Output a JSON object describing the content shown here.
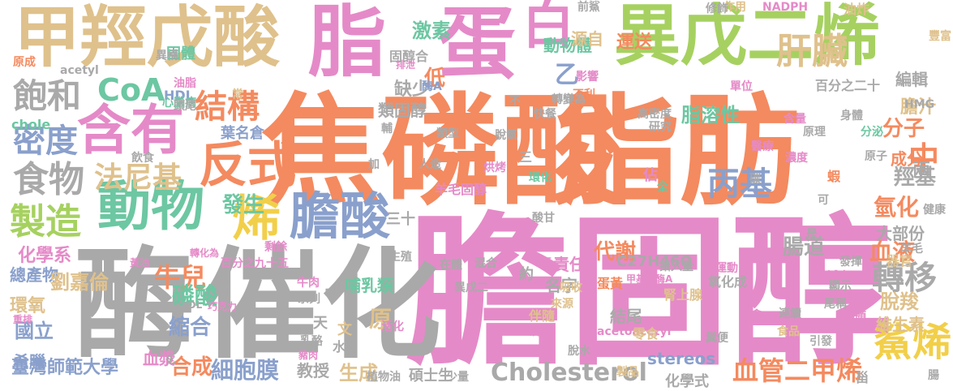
{
  "palette": {
    "orange": "#f48a5f",
    "pink": "#e58ac8",
    "green": "#a6d160",
    "tan": "#dfc18c",
    "gray": "#a9a9a9",
    "blue": "#8aa0cc",
    "teal": "#6cc7a2",
    "yellow": "#f2cf4a"
  },
  "words": [
    "膽固醇",
    "焦磷酸",
    "脂肪",
    "酶",
    "催化",
    "脂",
    "蛋",
    "白",
    "異戊二烯",
    "甲羥戊酸",
    "含有",
    "動物",
    "膽酸",
    "反式",
    "CoA",
    "飽和",
    "結構",
    "肝臟",
    "密度",
    "食物",
    "製造",
    "烯",
    "法尼基",
    "丙基",
    "中",
    "鯊烯",
    "轉移",
    "血管二甲烯",
    "Cholesterol",
    "臺灣師範大學",
    "國立",
    "化學系",
    "總產物",
    "環氧",
    "劉嘉倫",
    "牛兒",
    "磷酸",
    "縮合",
    "細胞膜",
    "發生",
    "分子",
    "氫化",
    "羥基",
    "腸道",
    "血液",
    "脫羧",
    "維生素",
    "大部份",
    "兩",
    "成分",
    "膽汁",
    "編輯",
    "脂溶性",
    "代謝",
    "結尾",
    "化學式",
    "碩士生",
    "生成",
    "教授",
    "哺乳類",
    "原",
    "合成",
    "血漿",
    "希臘",
    "葉名倉",
    "激素",
    "固體",
    "低",
    "缺少",
    "類固醇",
    "乙",
    "動物體",
    "運送",
    "源自",
    "酶A",
    "stereos",
    "C27H46O",
    "名字",
    "責任",
    "約",
    "吸收",
    "甲基輔酶A",
    "腎上腺",
    "前鯊",
    "作用",
    "NADPH",
    "油炸",
    "acetyl",
    "HDL",
    "LDL",
    "chole",
    "百分之二十",
    "HMG",
    "常",
    "三十",
    "甾",
    "文",
    "水",
    "天",
    "器官",
    "家禽",
    "脫水",
    "食品",
    "化",
    "植物油",
    "少量",
    "製品",
    "修飾",
    "acetoacetyl",
    "零食",
    "百分之九十五",
    "豬肉",
    "牛肉",
    "巧克力",
    "黃油",
    "異構",
    "剩餘",
    "轉化為",
    "不利",
    "高密度",
    "減少",
    "中風",
    "研究",
    "健康",
    "羊毛",
    "乳酪",
    "蛋黃",
    "伴隨",
    "攝入量",
    "氧化成",
    "來源",
    "更",
    "系列",
    "在體",
    "混合",
    "烘烤",
    "酸甘",
    "環化",
    "人造",
    "三",
    "輔",
    "全",
    "佔",
    "碳",
    "蝦",
    "原子",
    "分泌",
    "身體",
    "單位",
    "含量",
    "羊毛固醇",
    "排泄",
    "固醇合",
    "影響",
    "轉變為",
    "心腦病",
    "油脂",
    "頭尾",
    "飲食",
    "類型",
    "脫氫",
    "快餐",
    "甲",
    "活化",
    "磷脂",
    "糞便",
    "引發",
    "發揮",
    "尾稱",
    "顯示",
    "連續",
    "頭頭",
    "運動",
    "醫療",
    "濃度",
    "原理",
    "不",
    "加",
    "生殖",
    "異戊二",
    "重排",
    "原成",
    "可",
    "是",
    "腸",
    "豐富"
  ]
}
